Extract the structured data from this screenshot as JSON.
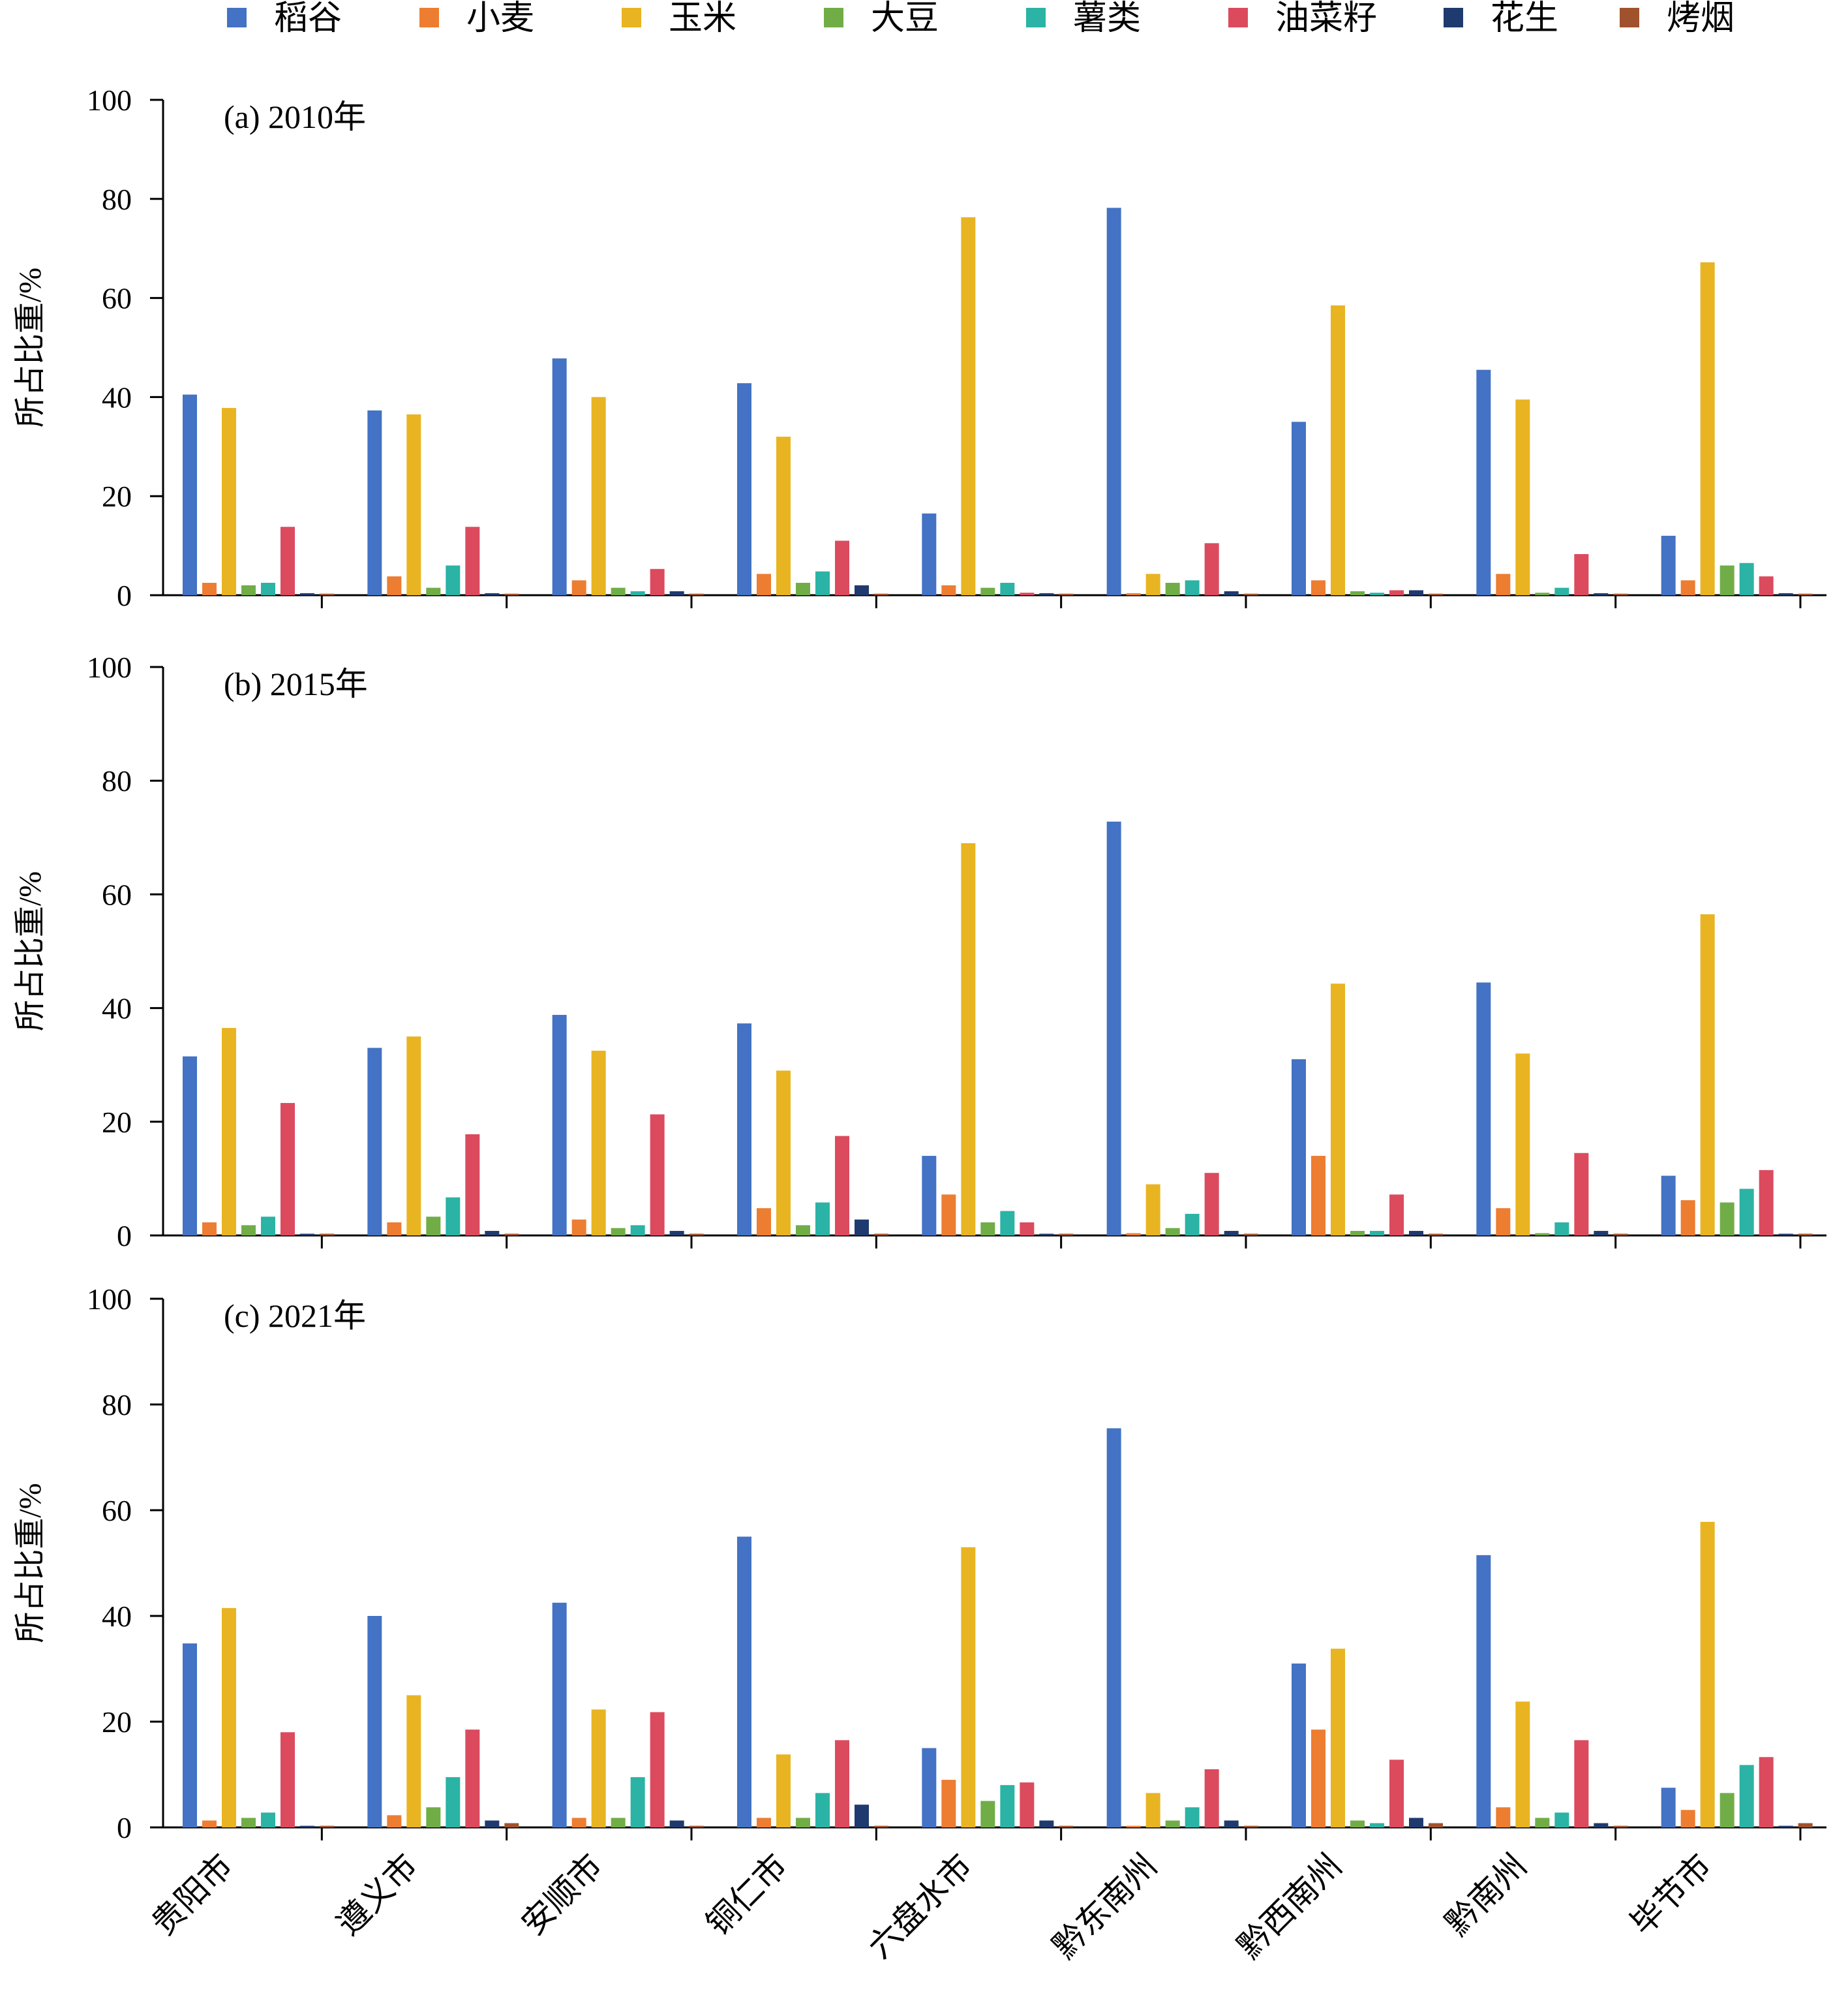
{
  "legend": [
    "稻谷",
    "小麦",
    "玉米",
    "大豆",
    "薯类",
    "油菜籽",
    "花生",
    "烤烟"
  ],
  "colors": {
    "稻谷": "#4472c4",
    "小麦": "#ed7d31",
    "玉米": "#e8b421",
    "大豆": "#70ad47",
    "薯类": "#2bb3a5",
    "油菜籽": "#dc4a5e",
    "花生": "#1f3a6e",
    "烤烟": "#a0522d"
  },
  "chart_data": [
    {
      "type": "bar",
      "title": "(a) 2010年",
      "ylabel": "所占比重/%",
      "ylim": [
        0,
        100
      ],
      "yticks": [
        0,
        20,
        40,
        60,
        80,
        100
      ],
      "categories": [
        "贵阳市",
        "遵义市",
        "安顺市",
        "铜仁市",
        "六盘水市",
        "黔东南州",
        "黔西南州",
        "黔南州",
        "毕节市"
      ],
      "series": [
        {
          "name": "稻谷",
          "values": [
            40.5,
            37.3,
            47.8,
            42.8,
            16.5,
            78.2,
            35.0,
            45.5,
            12.0
          ]
        },
        {
          "name": "小麦",
          "values": [
            2.5,
            3.8,
            3.0,
            4.3,
            2.0,
            0.4,
            3.0,
            4.3,
            3.0
          ]
        },
        {
          "name": "玉米",
          "values": [
            37.8,
            36.5,
            40.0,
            32.0,
            76.3,
            4.3,
            58.5,
            39.5,
            67.2
          ]
        },
        {
          "name": "大豆",
          "values": [
            2.0,
            1.5,
            1.5,
            2.5,
            1.5,
            2.5,
            0.8,
            0.5,
            6.0
          ]
        },
        {
          "name": "薯类",
          "values": [
            2.5,
            6.0,
            0.8,
            4.8,
            2.5,
            3.0,
            0.5,
            1.5,
            6.5
          ]
        },
        {
          "name": "油菜籽",
          "values": [
            13.8,
            13.8,
            5.3,
            11.0,
            0.5,
            10.5,
            1.0,
            8.3,
            3.8
          ]
        },
        {
          "name": "花生",
          "values": [
            0.4,
            0.4,
            0.8,
            2.0,
            0.4,
            0.8,
            1.0,
            0.4,
            0.4
          ]
        },
        {
          "name": "烤烟",
          "values": [
            0.3,
            0.3,
            0.3,
            0.3,
            0.3,
            0.3,
            0.3,
            0.3,
            0.3
          ]
        }
      ]
    },
    {
      "type": "bar",
      "title": "(b) 2015年",
      "ylabel": "所占比重/%",
      "ylim": [
        0,
        100
      ],
      "yticks": [
        0,
        20,
        40,
        60,
        80,
        100
      ],
      "categories": [
        "贵阳市",
        "遵义市",
        "安顺市",
        "铜仁市",
        "六盘水市",
        "黔东南州",
        "黔西南州",
        "黔南州",
        "毕节市"
      ],
      "series": [
        {
          "name": "稻谷",
          "values": [
            31.5,
            33.0,
            38.8,
            37.3,
            14.0,
            72.8,
            31.0,
            44.5,
            10.5
          ]
        },
        {
          "name": "小麦",
          "values": [
            2.3,
            2.3,
            2.8,
            4.8,
            7.2,
            0.4,
            14.0,
            4.8,
            6.2
          ]
        },
        {
          "name": "玉米",
          "values": [
            36.5,
            35.0,
            32.5,
            29.0,
            69.0,
            9.0,
            44.3,
            32.0,
            56.5
          ]
        },
        {
          "name": "大豆",
          "values": [
            1.8,
            3.3,
            1.3,
            1.8,
            2.3,
            1.3,
            0.8,
            0.4,
            5.8
          ]
        },
        {
          "name": "薯类",
          "values": [
            3.3,
            6.7,
            1.8,
            5.8,
            4.3,
            3.8,
            0.8,
            2.3,
            8.2
          ]
        },
        {
          "name": "油菜籽",
          "values": [
            23.3,
            17.8,
            21.3,
            17.5,
            2.3,
            11.0,
            7.2,
            14.5,
            11.5
          ]
        },
        {
          "name": "花生",
          "values": [
            0.3,
            0.8,
            0.8,
            2.8,
            0.3,
            0.8,
            0.8,
            0.8,
            0.3
          ]
        },
        {
          "name": "烤烟",
          "values": [
            0.3,
            0.3,
            0.3,
            0.3,
            0.3,
            0.3,
            0.3,
            0.3,
            0.3
          ]
        }
      ]
    },
    {
      "type": "bar",
      "title": "(c) 2021年",
      "ylabel": "所占比重/%",
      "ylim": [
        0,
        100
      ],
      "yticks": [
        0,
        20,
        40,
        60,
        80,
        100
      ],
      "categories": [
        "贵阳市",
        "遵义市",
        "安顺市",
        "铜仁市",
        "六盘水市",
        "黔东南州",
        "黔西南州",
        "黔南州",
        "毕节市"
      ],
      "series": [
        {
          "name": "稻谷",
          "values": [
            34.8,
            40.0,
            42.5,
            55.0,
            15.0,
            75.5,
            31.0,
            51.5,
            7.5
          ]
        },
        {
          "name": "小麦",
          "values": [
            1.3,
            2.3,
            1.8,
            1.8,
            9.0,
            0.3,
            18.5,
            3.8,
            3.3
          ]
        },
        {
          "name": "玉米",
          "values": [
            41.5,
            25.0,
            22.3,
            13.8,
            53.0,
            6.5,
            33.8,
            23.8,
            57.8
          ]
        },
        {
          "name": "大豆",
          "values": [
            1.8,
            3.8,
            1.8,
            1.8,
            5.0,
            1.3,
            1.3,
            1.8,
            6.5
          ]
        },
        {
          "name": "薯类",
          "values": [
            2.8,
            9.5,
            9.5,
            6.5,
            8.0,
            3.8,
            0.8,
            2.8,
            11.8
          ]
        },
        {
          "name": "油菜籽",
          "values": [
            18.0,
            18.5,
            21.8,
            16.5,
            8.5,
            11.0,
            12.8,
            16.5,
            13.3
          ]
        },
        {
          "name": "花生",
          "values": [
            0.3,
            1.3,
            1.3,
            4.3,
            1.3,
            1.3,
            1.8,
            0.8,
            0.3
          ]
        },
        {
          "name": "烤烟",
          "values": [
            0.3,
            0.8,
            0.3,
            0.3,
            0.3,
            0.3,
            0.8,
            0.3,
            0.8
          ]
        }
      ]
    }
  ]
}
